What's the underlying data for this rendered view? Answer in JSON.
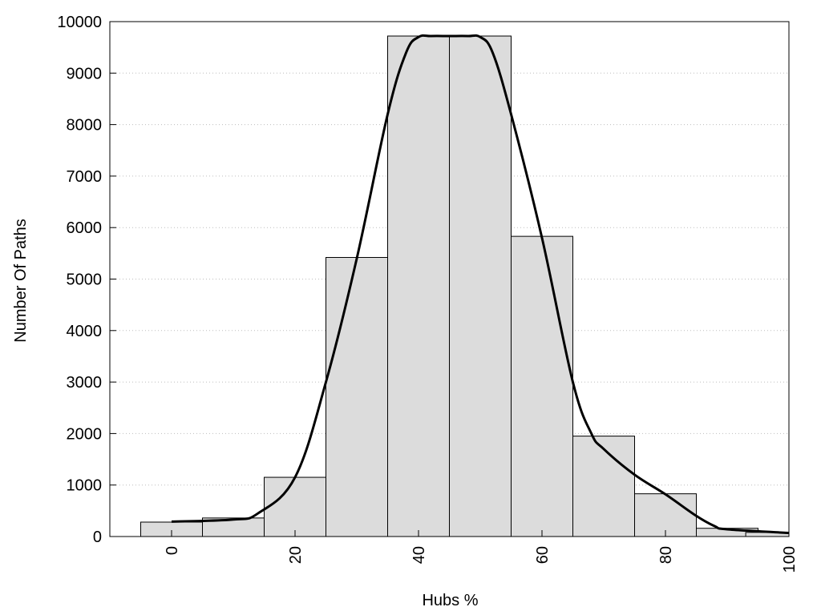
{
  "chart_data": {
    "type": "bar",
    "title": "",
    "xlabel": "Hubs %",
    "ylabel": "Number Of Paths",
    "xlim": [
      -10,
      100
    ],
    "ylim": [
      0,
      10000
    ],
    "xticks": [
      0,
      20,
      40,
      60,
      80,
      100
    ],
    "yticks": [
      0,
      1000,
      2000,
      3000,
      4000,
      5000,
      6000,
      7000,
      8000,
      9000,
      10000
    ],
    "grid": "horizontal dotted",
    "bin_width": 10,
    "bins": [
      {
        "x": 0,
        "value": 280
      },
      {
        "x": 10,
        "value": 360
      },
      {
        "x": 20,
        "value": 1150
      },
      {
        "x": 30,
        "value": 5420
      },
      {
        "x": 40,
        "value": 9720
      },
      {
        "x": 50,
        "value": 9720
      },
      {
        "x": 60,
        "value": 5830
      },
      {
        "x": 70,
        "value": 1950
      },
      {
        "x": 80,
        "value": 830
      },
      {
        "x": 90,
        "value": 160
      },
      {
        "x": 98,
        "value": 80
      }
    ],
    "curve": {
      "x": [
        0,
        10,
        14,
        20,
        25,
        30,
        35,
        38,
        40,
        42,
        45,
        48,
        50,
        52,
        55,
        60,
        65,
        68,
        70,
        75,
        80,
        85,
        88,
        90,
        100
      ],
      "y": [
        290,
        330,
        450,
        1150,
        3000,
        5400,
        8200,
        9400,
        9700,
        9720,
        9720,
        9720,
        9700,
        9400,
        8200,
        5800,
        3000,
        2000,
        1700,
        1200,
        820,
        400,
        200,
        140,
        70
      ]
    },
    "colors": {
      "bar_fill": "#dcdcdc",
      "bar_stroke": "#000000",
      "curve": "#000000",
      "grid": "#bdbdbd"
    }
  }
}
